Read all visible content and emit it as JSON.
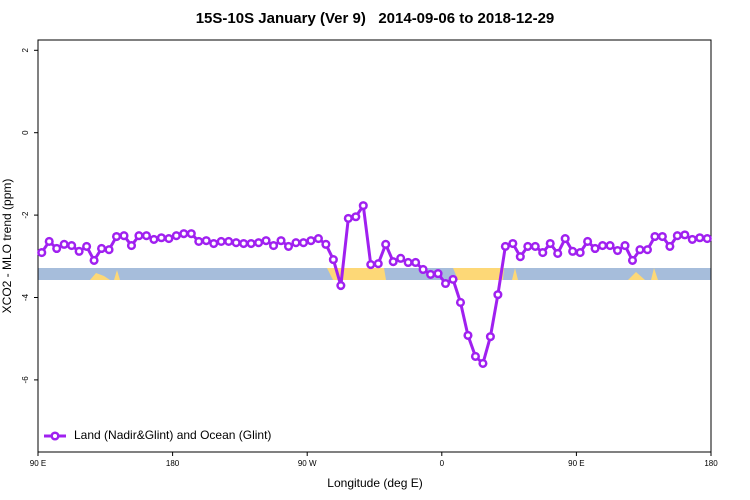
{
  "chart_data": {
    "type": "line",
    "title": "15S-10S January (Ver 9)   2014-09-06 to 2018-12-29",
    "xlabel": "Longitude (deg E)",
    "ylabel": "XCO2 - MLO trend (ppm)",
    "x": [
      92.5,
      97.5,
      102.5,
      107.5,
      112.5,
      117.5,
      122.5,
      127.5,
      132.5,
      137.5,
      142.5,
      147.5,
      152.5,
      157.5,
      162.5,
      167.5,
      172.5,
      177.5,
      182.5,
      187.5,
      192.5,
      197.5,
      202.5,
      207.5,
      212.5,
      217.5,
      222.5,
      227.5,
      232.5,
      237.5,
      242.5,
      247.5,
      252.5,
      257.5,
      262.5,
      267.5,
      272.5,
      277.5,
      282.5,
      287.5,
      292.5,
      297.5,
      302.5,
      307.5,
      312.5,
      317.5,
      322.5,
      327.5,
      332.5,
      337.5,
      342.5,
      347.5,
      352.5,
      357.5,
      362.5,
      367.5,
      372.5,
      377.5,
      382.5,
      387.5,
      392.5,
      397.5,
      402.5,
      407.5,
      412.5,
      417.5,
      422.5,
      427.5,
      432.5,
      437.5,
      442.5,
      447.5,
      452.5,
      457.5,
      462.5,
      467.5,
      472.5,
      477.5,
      482.5,
      487.5,
      492.5,
      497.5,
      502.5,
      507.5,
      512.5,
      517.5,
      522.5,
      527.5,
      532.5,
      537.5
    ],
    "series": [
      {
        "name": "Land (Nadir&Glint) and Ocean (Glint)",
        "color": "#a020f0",
        "values": [
          -2.91,
          -2.64,
          -2.81,
          -2.71,
          -2.74,
          -2.88,
          -2.76,
          -3.1,
          -2.81,
          -2.84,
          -2.52,
          -2.5,
          -2.74,
          -2.5,
          -2.5,
          -2.59,
          -2.55,
          -2.57,
          -2.5,
          -2.45,
          -2.45,
          -2.64,
          -2.62,
          -2.69,
          -2.64,
          -2.64,
          -2.67,
          -2.69,
          -2.69,
          -2.67,
          -2.62,
          -2.74,
          -2.62,
          -2.76,
          -2.67,
          -2.67,
          -2.62,
          -2.57,
          -2.71,
          -3.08,
          -3.71,
          -2.08,
          -2.04,
          -1.77,
          -3.2,
          -3.18,
          -2.71,
          -3.13,
          -3.05,
          -3.15,
          -3.15,
          -3.32,
          -3.44,
          -3.42,
          -3.66,
          -3.56,
          -4.12,
          -4.92,
          -5.43,
          -5.6,
          -4.95,
          -3.93,
          -2.76,
          -2.69,
          -3.01,
          -2.76,
          -2.76,
          -2.91,
          -2.69,
          -2.93,
          -2.57,
          -2.88,
          -2.91,
          -2.64,
          -2.81,
          -2.74,
          -2.74,
          -2.86,
          -2.74,
          -3.1,
          -2.84,
          -2.84,
          -2.52,
          -2.52,
          -2.76,
          -2.5,
          -2.48,
          -2.59,
          -2.55,
          -2.57
        ]
      }
    ],
    "xlim": [
      90,
      540
    ],
    "xticks": [
      {
        "value": 90,
        "label": "90 E"
      },
      180,
      {
        "value": 270,
        "label": "90 W"
      },
      {
        "value": 360,
        "label": "0"
      },
      {
        "value": 450,
        "label": "90 E"
      },
      {
        "value": 540,
        "label": "180"
      }
    ],
    "ylim": [
      -7.75,
      2.25
    ],
    "yticks": [
      2,
      0,
      -2,
      -4,
      -6
    ],
    "legend": "bottomleft"
  }
}
